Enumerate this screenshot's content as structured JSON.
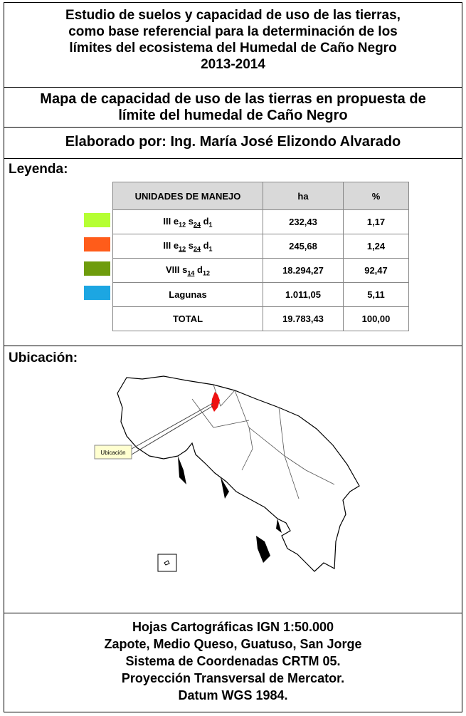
{
  "header": {
    "title": [
      "Estudio de suelos y capacidad de uso de las tierras,",
      "como base referencial para la determinación de los",
      "límites del ecosistema del Humedal de Caño Negro",
      "2013-2014"
    ],
    "subtitle": [
      "Mapa de capacidad de uso de las tierras en propuesta de",
      "límite del humedal de Caño Negro"
    ],
    "author": "Elaborado por: Ing. María José Elizondo Alvarado"
  },
  "legend": {
    "label": "Leyenda:",
    "columns": [
      "UNIDADES DE MANEJO",
      "ha",
      "%"
    ],
    "rows": [
      {
        "color": "#b5ff33",
        "unit": [
          {
            "t": "III e"
          },
          {
            "t": "12",
            "sub": true
          },
          {
            "t": " s"
          },
          {
            "t": "24",
            "sub": true,
            "underline": true
          },
          {
            "t": " d"
          },
          {
            "t": "1",
            "sub": true
          }
        ],
        "ha": "232,43",
        "pct": "1,17"
      },
      {
        "color": "#ff5c1a",
        "unit": [
          {
            "t": "III e"
          },
          {
            "t": "12",
            "sub": true,
            "underline": true
          },
          {
            "t": " s"
          },
          {
            "t": "24",
            "sub": true,
            "underline": true
          },
          {
            "t": " d"
          },
          {
            "t": "1",
            "sub": true
          }
        ],
        "ha": "245,68",
        "pct": "1,24"
      },
      {
        "color": "#6e9c0c",
        "unit": [
          {
            "t": "VIII s"
          },
          {
            "t": "14",
            "sub": true,
            "underline": true
          },
          {
            "t": " d"
          },
          {
            "t": "12",
            "sub": true
          }
        ],
        "ha": "18.294,27",
        "pct": "92,47"
      },
      {
        "color": "#1ca6e2",
        "unit": [
          {
            "t": "Lagunas"
          }
        ],
        "ha": "1.011,05",
        "pct": "5,11"
      }
    ],
    "total": {
      "unit": "TOTAL",
      "ha": "19.783,43",
      "pct": "100,00"
    }
  },
  "location": {
    "label": "Ubicación:",
    "callout": "Ubicación"
  },
  "footer": [
    "Hojas Cartográficas IGN 1:50.000",
    "Zapote, Medio Queso, Guatuso, San Jorge",
    "Sistema de Coordenadas CRTM 05.",
    "Proyección Transversal de Mercator.",
    "Datum WGS 1984."
  ]
}
